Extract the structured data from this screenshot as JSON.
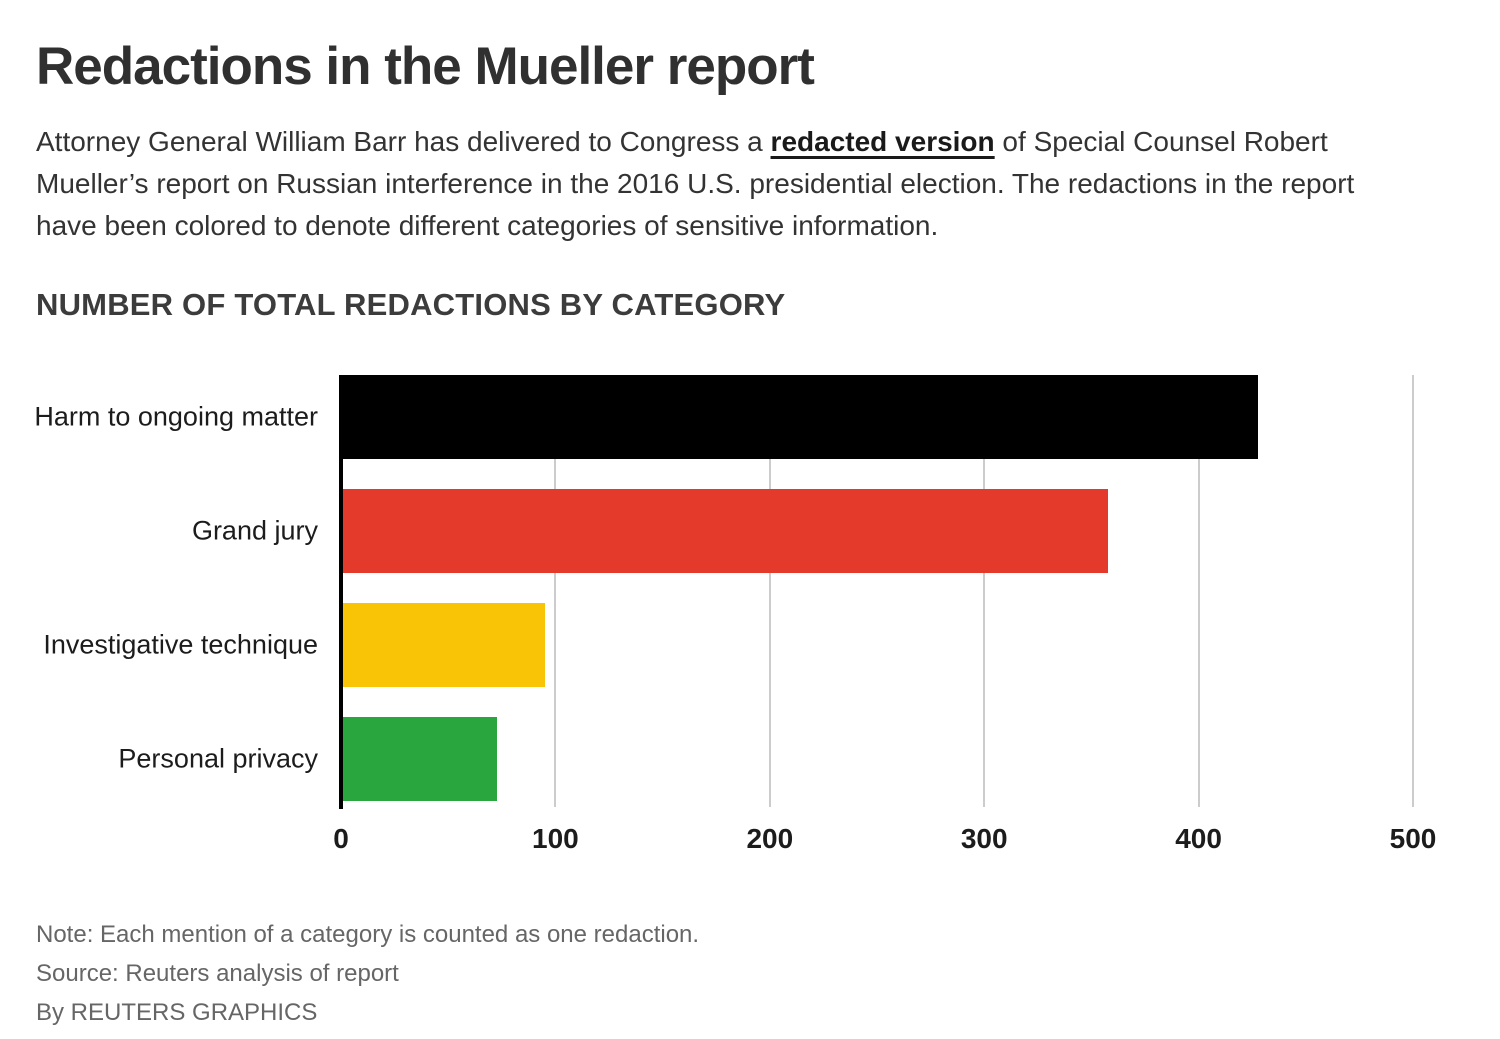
{
  "page": {
    "title": "Redactions in the Mueller report",
    "intro": {
      "text_before": "Attorney General William Barr has delivered to Congress a ",
      "link_text": "redacted version",
      "text_after": " of Special Counsel Robert Mueller’s report on Russian interference in the 2016 U.S. presidential election. The redactions in the report have been colored to denote different categories of sensitive information."
    },
    "footer": {
      "note": "Note: Each mention of a category is counted as one redaction.",
      "source": "Source: Reuters analysis of report",
      "byline": "By REUTERS GRAPHICS"
    }
  },
  "chart_data": {
    "type": "bar",
    "orientation": "horizontal",
    "title": "NUMBER OF TOTAL REDACTIONS BY CATEGORY",
    "categories": [
      "Harm to ongoing matter",
      "Grand jury",
      "Investigative technique",
      "Personal privacy"
    ],
    "values": [
      427,
      357,
      94,
      72
    ],
    "bar_colors": [
      "#000000",
      "#e33a2c",
      "#f9c306",
      "#2aa63f"
    ],
    "xlim": [
      0,
      500
    ],
    "xticks": [
      0,
      100,
      200,
      300,
      400,
      500
    ],
    "grid": true,
    "gridline_color": "#cccccc",
    "axis_color": "#000000",
    "legend": "none",
    "xlabel": "",
    "ylabel": ""
  }
}
